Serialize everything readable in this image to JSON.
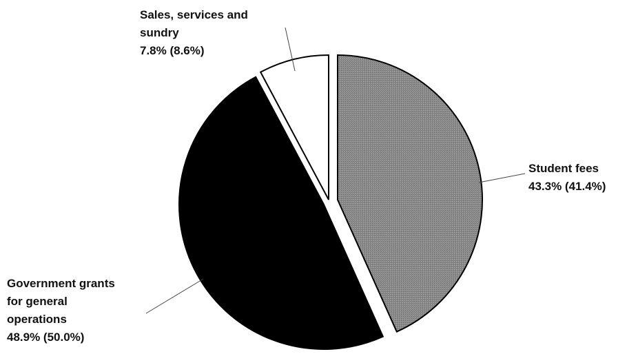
{
  "chart_data": {
    "type": "pie",
    "title": "",
    "colors": {
      "Student fees": "#8c8c8c",
      "Government grants for general operations": "#000000",
      "Sales, services and sundry": "#ffffff"
    },
    "slices": [
      {
        "name": "Student fees",
        "value": 43.3,
        "prior_value": 41.4,
        "label_lines": [
          "Student fees",
          "43.3% (41.4%)"
        ]
      },
      {
        "name": "Government grants for general operations",
        "value": 48.9,
        "prior_value": 50.0,
        "label_lines": [
          "Government grants",
          "for general",
          "operations",
          "48.9% (50.0%)"
        ]
      },
      {
        "name": "Sales, services and sundry",
        "value": 7.8,
        "prior_value": 8.6,
        "label_lines": [
          "Sales, services and",
          "sundry",
          "7.8% (8.6%)"
        ]
      }
    ]
  }
}
